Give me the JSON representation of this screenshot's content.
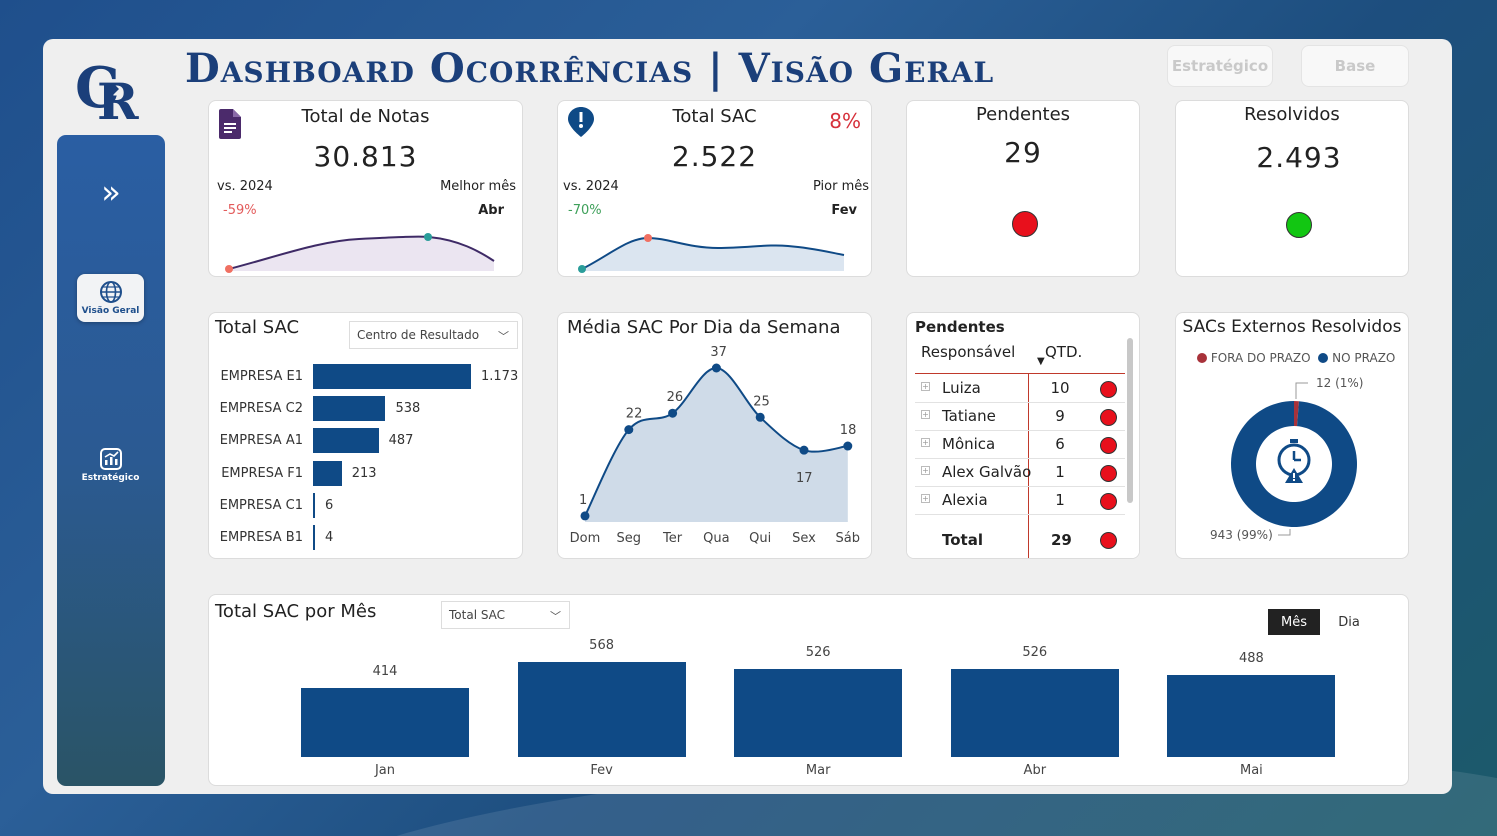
{
  "header": {
    "title": "Dashboard Ocorrências | Visão Geral",
    "buttons": [
      "Estratégico",
      "Base"
    ]
  },
  "sidebar": {
    "items": [
      {
        "label": "Visão Geral",
        "icon": "globe-icon",
        "active": true
      },
      {
        "label": "Estratégico",
        "icon": "chart-icon",
        "active": false
      }
    ]
  },
  "kpis": {
    "total_notas": {
      "title": "Total de Notas",
      "value": "30.813",
      "compare_label": "vs. 2024",
      "compare_value": "-59%",
      "month_label": "Melhor mês",
      "month_value": "Abr",
      "icon": "document-icon"
    },
    "total_sac": {
      "title": "Total SAC",
      "value": "2.522",
      "badge": "8%",
      "compare_label": "vs. 2024",
      "compare_value": "-70%",
      "month_label": "Pior mês",
      "month_value": "Fev",
      "icon": "alert-icon"
    },
    "pendentes": {
      "title": "Pendentes",
      "value": "29",
      "status_color": "#e8101c"
    },
    "resolvidos": {
      "title": "Resolvidos",
      "value": "2.493",
      "status_color": "#12c612"
    }
  },
  "sac_por_empresa": {
    "title": "Total SAC",
    "dropdown": "Centro de Resultado",
    "rows": [
      {
        "label": "EMPRESA E1",
        "value": 1173,
        "display": "1.173"
      },
      {
        "label": "EMPRESA C2",
        "value": 538,
        "display": "538"
      },
      {
        "label": "EMPRESA A1",
        "value": 487,
        "display": "487"
      },
      {
        "label": "EMPRESA F1",
        "value": 213,
        "display": "213"
      },
      {
        "label": "EMPRESA C1",
        "value": 6,
        "display": "6"
      },
      {
        "label": "EMPRESA B1",
        "value": 4,
        "display": "4"
      }
    ]
  },
  "media_semana": {
    "title": "Média SAC Por Dia da Semana",
    "days": [
      "Dom",
      "Seg",
      "Ter",
      "Qua",
      "Qui",
      "Sex",
      "Sáb"
    ],
    "values": [
      1,
      22,
      26,
      37,
      25,
      17,
      18
    ]
  },
  "pendentes_tabela": {
    "title": "Pendentes",
    "col_responsavel": "Responsável",
    "col_qtd": "QTD.",
    "rows": [
      {
        "name": "Luiza",
        "qtd": "10"
      },
      {
        "name": "Tatiane",
        "qtd": "9"
      },
      {
        "name": "Mônica",
        "qtd": "6"
      },
      {
        "name": "Alex Galvão",
        "qtd": "1"
      },
      {
        "name": "Alexia",
        "qtd": "1"
      }
    ],
    "total_label": "Total",
    "total_value": "29"
  },
  "externos": {
    "title": "SACs Externos Resolvidos",
    "legend": [
      {
        "label": "FORA DO PRAZO",
        "color": "#a8323a"
      },
      {
        "label": "NO PRAZO",
        "color": "#0f4a86"
      }
    ],
    "slices": [
      {
        "label": "12 (1%)",
        "value": 12
      },
      {
        "label": "943 (99%)",
        "value": 943
      }
    ]
  },
  "sac_mes": {
    "title": "Total SAC por Mês",
    "dropdown": "Total SAC",
    "toggle": [
      "Mês",
      "Dia"
    ],
    "months": [
      "Jan",
      "Fev",
      "Mar",
      "Abr",
      "Mai"
    ],
    "values": [
      414,
      568,
      526,
      526,
      488
    ]
  },
  "chart_data": [
    {
      "type": "bar",
      "title": "Total SAC",
      "categories": [
        "EMPRESA E1",
        "EMPRESA C2",
        "EMPRESA A1",
        "EMPRESA F1",
        "EMPRESA C1",
        "EMPRESA B1"
      ],
      "values": [
        1173,
        538,
        487,
        213,
        6,
        4
      ]
    },
    {
      "type": "area",
      "title": "Média SAC Por Dia da Semana",
      "categories": [
        "Dom",
        "Seg",
        "Ter",
        "Qua",
        "Qui",
        "Sex",
        "Sáb"
      ],
      "values": [
        1,
        22,
        26,
        37,
        25,
        17,
        18
      ]
    },
    {
      "type": "pie",
      "title": "SACs Externos Resolvidos",
      "categories": [
        "FORA DO PRAZO",
        "NO PRAZO"
      ],
      "values": [
        12,
        943
      ]
    },
    {
      "type": "bar",
      "title": "Total SAC por Mês",
      "categories": [
        "Jan",
        "Fev",
        "Mar",
        "Abr",
        "Mai"
      ],
      "values": [
        414,
        568,
        526,
        526,
        488
      ]
    }
  ]
}
